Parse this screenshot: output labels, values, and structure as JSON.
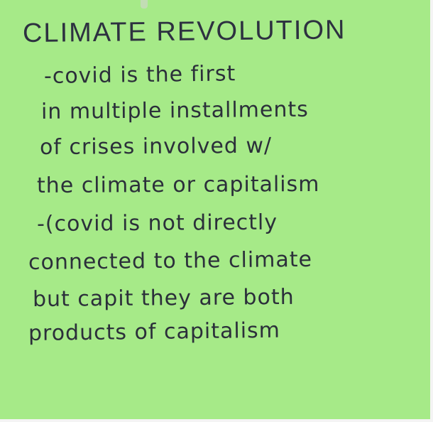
{
  "note": {
    "lines": [
      "CLIMATE REVOLUTION",
      "-covid is the first",
      "in multiple installments",
      "of crises involved w/",
      "the climate or capitalism",
      "-(covid is not directly",
      "connected to the climate",
      "but capit they are both",
      "products of capitalism"
    ]
  },
  "colors": {
    "paper": "#a6ea88",
    "ink": "#2b2f3a"
  }
}
